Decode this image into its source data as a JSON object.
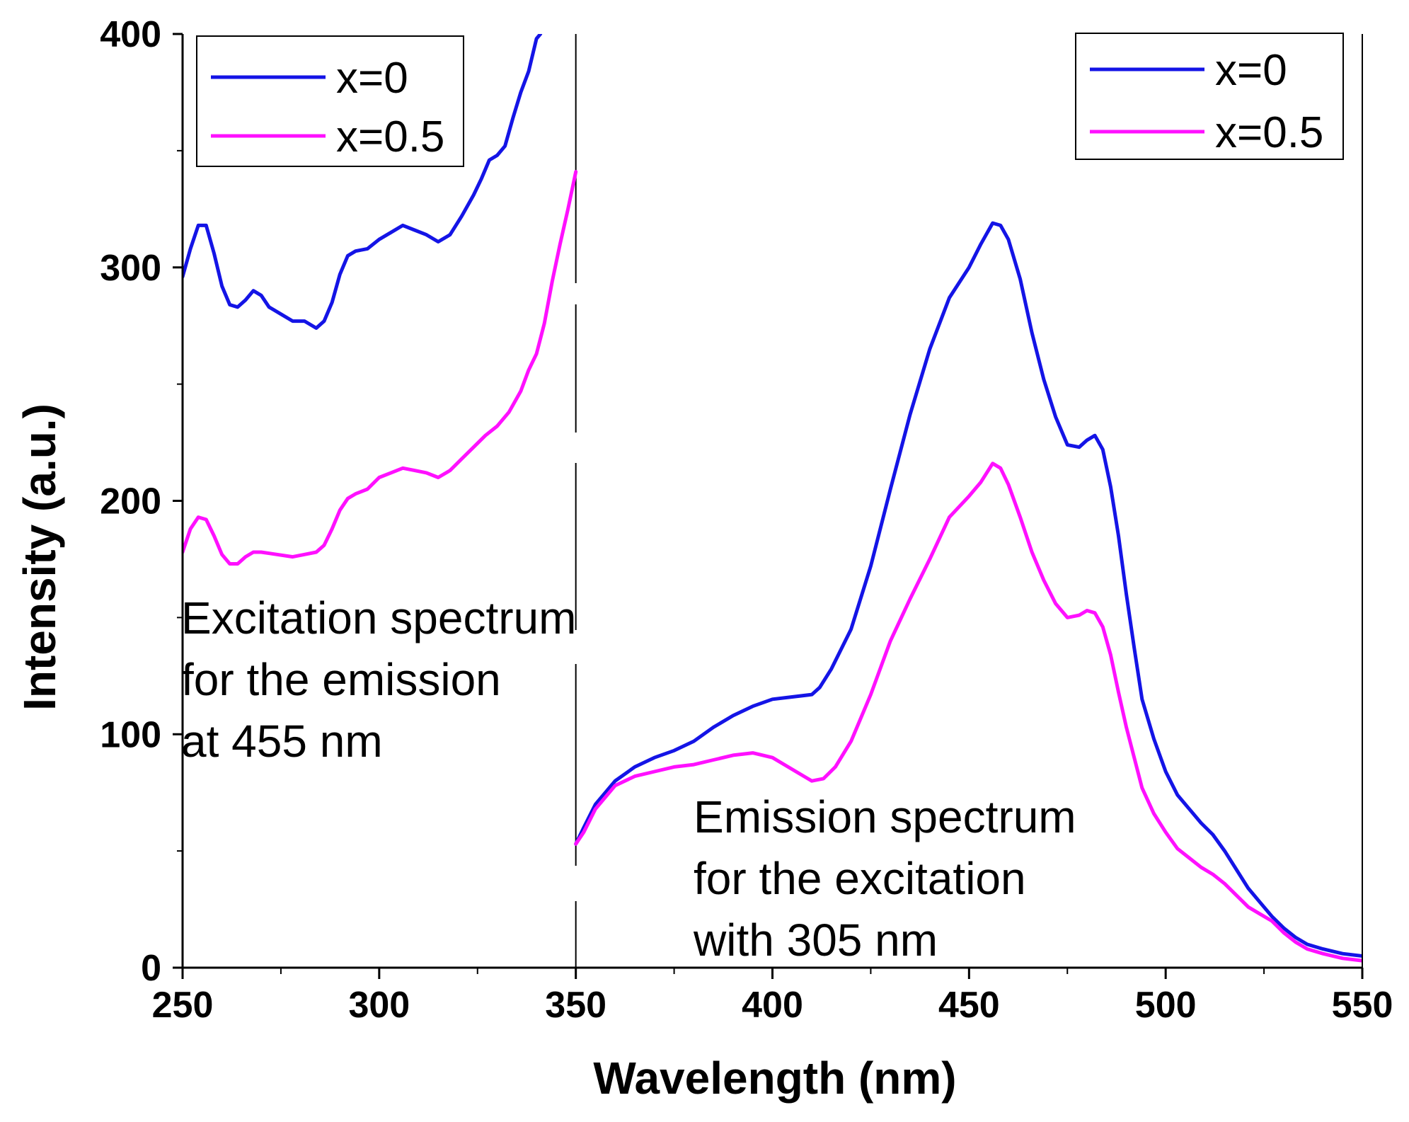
{
  "chart_data": {
    "type": "line",
    "xlabel": "Wavelength (nm)",
    "ylabel": "Intensity (a.u.)",
    "xlim": [
      250,
      550
    ],
    "ylim": [
      0,
      400
    ],
    "x_ticks": [
      250,
      300,
      350,
      400,
      450,
      500,
      550
    ],
    "x_tick_labels": [
      "250",
      "300",
      "350",
      "400",
      "450",
      "500",
      "550"
    ],
    "y_ticks": [
      0,
      100,
      200,
      300,
      400
    ],
    "y_tick_labels": [
      "0",
      "100",
      "200",
      "300",
      "400"
    ],
    "divider_x": 350,
    "colors": {
      "x0": "#1414e6",
      "x05": "#ff10ff",
      "axis": "#000000"
    },
    "legends": [
      {
        "position": "top-left",
        "entries": [
          "x=0",
          "x=0.5"
        ]
      },
      {
        "position": "top-right",
        "entries": [
          "x=0",
          "x=0.5"
        ]
      }
    ],
    "annotations": [
      {
        "position": "left",
        "lines": [
          "Excitation spectrum",
          "for the emission",
          "at 455 nm"
        ]
      },
      {
        "position": "bottom-center",
        "lines": [
          "Emission spectrum",
          "for the excitation",
          "with 305 nm"
        ]
      }
    ],
    "series": [
      {
        "name": "x=0",
        "group": "excitation",
        "color_key": "x0",
        "points": [
          [
            250,
            296
          ],
          [
            252,
            308
          ],
          [
            254,
            318
          ],
          [
            256,
            318
          ],
          [
            258,
            306
          ],
          [
            260,
            292
          ],
          [
            262,
            284
          ],
          [
            264,
            283
          ],
          [
            266,
            286
          ],
          [
            268,
            290
          ],
          [
            270,
            288
          ],
          [
            272,
            283
          ],
          [
            275,
            280
          ],
          [
            278,
            277
          ],
          [
            281,
            277
          ],
          [
            284,
            274
          ],
          [
            286,
            277
          ],
          [
            288,
            285
          ],
          [
            290,
            297
          ],
          [
            292,
            305
          ],
          [
            294,
            307
          ],
          [
            297,
            308
          ],
          [
            300,
            312
          ],
          [
            303,
            315
          ],
          [
            306,
            318
          ],
          [
            309,
            316
          ],
          [
            312,
            314
          ],
          [
            315,
            311
          ],
          [
            318,
            314
          ],
          [
            321,
            322
          ],
          [
            324,
            331
          ],
          [
            326,
            338
          ],
          [
            328,
            346
          ],
          [
            330,
            348
          ],
          [
            332,
            352
          ],
          [
            334,
            364
          ],
          [
            336,
            375
          ],
          [
            338,
            384
          ],
          [
            340,
            398
          ],
          [
            341,
            400
          ]
        ]
      },
      {
        "name": "x=0.5",
        "group": "excitation",
        "color_key": "x05",
        "points": [
          [
            250,
            178
          ],
          [
            252,
            188
          ],
          [
            254,
            193
          ],
          [
            256,
            192
          ],
          [
            258,
            185
          ],
          [
            260,
            177
          ],
          [
            262,
            173
          ],
          [
            264,
            173
          ],
          [
            266,
            176
          ],
          [
            268,
            178
          ],
          [
            270,
            178
          ],
          [
            274,
            177
          ],
          [
            278,
            176
          ],
          [
            281,
            177
          ],
          [
            284,
            178
          ],
          [
            286,
            181
          ],
          [
            288,
            188
          ],
          [
            290,
            196
          ],
          [
            292,
            201
          ],
          [
            294,
            203
          ],
          [
            297,
            205
          ],
          [
            300,
            210
          ],
          [
            303,
            212
          ],
          [
            306,
            214
          ],
          [
            309,
            213
          ],
          [
            312,
            212
          ],
          [
            315,
            210
          ],
          [
            318,
            213
          ],
          [
            321,
            218
          ],
          [
            324,
            223
          ],
          [
            327,
            228
          ],
          [
            330,
            232
          ],
          [
            333,
            238
          ],
          [
            336,
            247
          ],
          [
            338,
            256
          ],
          [
            340,
            263
          ],
          [
            342,
            276
          ],
          [
            344,
            294
          ],
          [
            346,
            310
          ],
          [
            348,
            325
          ],
          [
            350,
            341
          ]
        ]
      },
      {
        "name": "x=0",
        "group": "emission",
        "color_key": "x0",
        "points": [
          [
            350,
            53
          ],
          [
            352,
            60
          ],
          [
            355,
            70
          ],
          [
            360,
            80
          ],
          [
            365,
            86
          ],
          [
            370,
            90
          ],
          [
            375,
            93
          ],
          [
            380,
            97
          ],
          [
            385,
            103
          ],
          [
            390,
            108
          ],
          [
            395,
            112
          ],
          [
            400,
            115
          ],
          [
            405,
            116
          ],
          [
            410,
            117
          ],
          [
            412,
            120
          ],
          [
            415,
            128
          ],
          [
            420,
            145
          ],
          [
            425,
            172
          ],
          [
            430,
            205
          ],
          [
            435,
            237
          ],
          [
            440,
            265
          ],
          [
            445,
            287
          ],
          [
            450,
            300
          ],
          [
            453,
            310
          ],
          [
            456,
            319
          ],
          [
            458,
            318
          ],
          [
            460,
            312
          ],
          [
            463,
            295
          ],
          [
            466,
            272
          ],
          [
            469,
            252
          ],
          [
            472,
            236
          ],
          [
            475,
            224
          ],
          [
            478,
            223
          ],
          [
            480,
            226
          ],
          [
            482,
            228
          ],
          [
            484,
            222
          ],
          [
            486,
            206
          ],
          [
            488,
            185
          ],
          [
            490,
            160
          ],
          [
            492,
            137
          ],
          [
            494,
            115
          ],
          [
            497,
            98
          ],
          [
            500,
            84
          ],
          [
            503,
            74
          ],
          [
            506,
            68
          ],
          [
            509,
            62
          ],
          [
            512,
            57
          ],
          [
            515,
            50
          ],
          [
            518,
            42
          ],
          [
            521,
            34
          ],
          [
            524,
            28
          ],
          [
            527,
            22
          ],
          [
            530,
            17
          ],
          [
            533,
            13
          ],
          [
            536,
            10
          ],
          [
            540,
            8
          ],
          [
            545,
            6
          ],
          [
            550,
            5
          ]
        ]
      },
      {
        "name": "x=0.5",
        "group": "emission",
        "color_key": "x05",
        "points": [
          [
            350,
            53
          ],
          [
            352,
            58
          ],
          [
            355,
            68
          ],
          [
            360,
            78
          ],
          [
            365,
            82
          ],
          [
            370,
            84
          ],
          [
            375,
            86
          ],
          [
            380,
            87
          ],
          [
            385,
            89
          ],
          [
            390,
            91
          ],
          [
            395,
            92
          ],
          [
            400,
            90
          ],
          [
            403,
            87
          ],
          [
            406,
            84
          ],
          [
            410,
            80
          ],
          [
            413,
            81
          ],
          [
            416,
            86
          ],
          [
            420,
            97
          ],
          [
            425,
            117
          ],
          [
            430,
            140
          ],
          [
            435,
            158
          ],
          [
            440,
            175
          ],
          [
            445,
            193
          ],
          [
            450,
            202
          ],
          [
            453,
            208
          ],
          [
            456,
            216
          ],
          [
            458,
            214
          ],
          [
            460,
            207
          ],
          [
            463,
            193
          ],
          [
            466,
            178
          ],
          [
            469,
            166
          ],
          [
            472,
            156
          ],
          [
            475,
            150
          ],
          [
            478,
            151
          ],
          [
            480,
            153
          ],
          [
            482,
            152
          ],
          [
            484,
            146
          ],
          [
            486,
            134
          ],
          [
            488,
            118
          ],
          [
            490,
            103
          ],
          [
            492,
            90
          ],
          [
            494,
            77
          ],
          [
            497,
            66
          ],
          [
            500,
            58
          ],
          [
            503,
            51
          ],
          [
            506,
            47
          ],
          [
            509,
            43
          ],
          [
            512,
            40
          ],
          [
            515,
            36
          ],
          [
            518,
            31
          ],
          [
            521,
            26
          ],
          [
            524,
            23
          ],
          [
            527,
            20
          ],
          [
            530,
            15
          ],
          [
            533,
            11
          ],
          [
            536,
            8
          ],
          [
            540,
            6
          ],
          [
            545,
            4
          ],
          [
            550,
            3
          ]
        ]
      }
    ]
  }
}
